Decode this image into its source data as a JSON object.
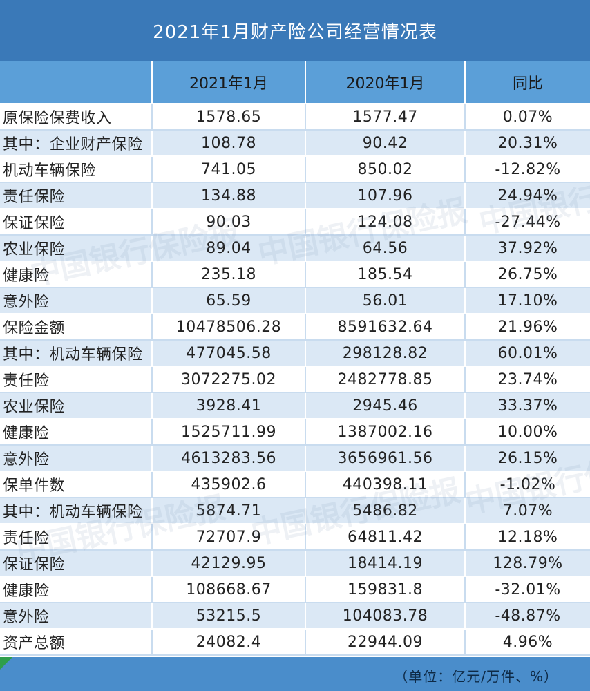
{
  "title": "2021年1月财产险公司经营情况表",
  "headers": [
    "",
    "2021年1月",
    "2020年1月",
    "同比"
  ],
  "rows": [
    [
      "原保险保费收入",
      "1578.65",
      "1577.47",
      "0.07%"
    ],
    [
      "其中：企业财产保险",
      "108.78",
      "90.42",
      "20.31%"
    ],
    [
      "机动车辆保险",
      "741.05",
      "850.02",
      "-12.82%"
    ],
    [
      "责任保险",
      "134.88",
      "107.96",
      "24.94%"
    ],
    [
      "保证保险",
      "90.03",
      "124.08",
      "-27.44%"
    ],
    [
      "农业保险",
      "89.04",
      "64.56",
      "37.92%"
    ],
    [
      "健康险",
      "235.18",
      "185.54",
      "26.75%"
    ],
    [
      "意外险",
      "65.59",
      "56.01",
      "17.10%"
    ],
    [
      "保险金额",
      "10478506.28",
      "8591632.64",
      "21.96%"
    ],
    [
      "其中：机动车辆保险",
      "477045.58",
      "298128.82",
      "60.01%"
    ],
    [
      "责任险",
      "3072275.02",
      "2482778.85",
      "23.74%"
    ],
    [
      "农业保险",
      "3928.41",
      "2945.46",
      "33.37%"
    ],
    [
      "健康险",
      "1525711.99",
      "1387002.16",
      "10.00%"
    ],
    [
      "意外险",
      "4613283.56",
      "3656961.56",
      "26.15%"
    ],
    [
      "保单件数",
      "435902.6",
      "440398.11",
      "-1.02%"
    ],
    [
      "其中：机动车辆保险",
      "5874.71",
      "5486.82",
      "7.07%"
    ],
    [
      "责任险",
      "72707.9",
      "64811.42",
      "12.18%"
    ],
    [
      "保证保险",
      "42129.95",
      "18414.19",
      "128.79%"
    ],
    [
      "健康险",
      "108668.67",
      "159831.8",
      "-32.01%"
    ],
    [
      "意外险",
      "53215.5",
      "104083.78",
      "-48.87%"
    ],
    [
      "资产总额",
      "24082.4",
      "22944.09",
      "4.96%"
    ]
  ],
  "footer_note": "（单位：亿元/万件、%）",
  "watermark_text": "中国银行保险报",
  "colors": {
    "title_bg": "#3a79b8",
    "header_bg": "#5b9fd8",
    "stripe": "#dbe8f5",
    "footer_bg": "#4a8dcb"
  }
}
